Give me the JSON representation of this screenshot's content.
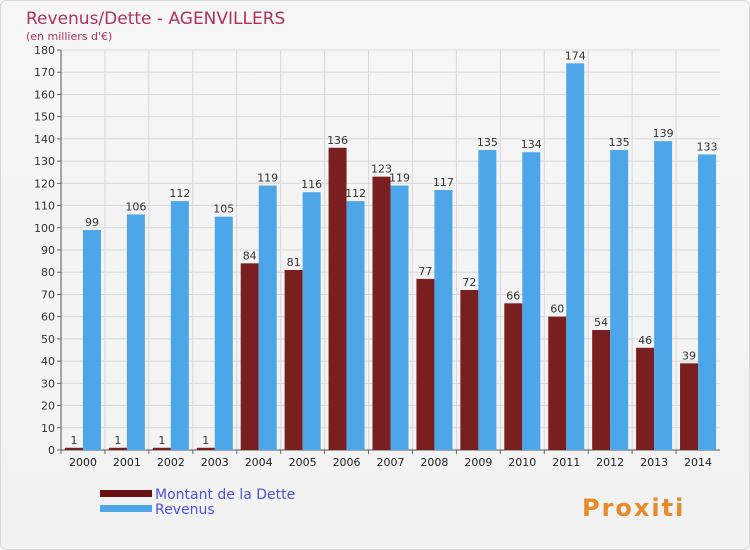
{
  "chart_data": {
    "type": "bar",
    "title": "Revenus/Dette - AGENVILLERS",
    "subtitle": "(en milliers d'€)",
    "categories": [
      "2000",
      "2001",
      "2002",
      "2003",
      "2004",
      "2005",
      "2006",
      "2007",
      "2008",
      "2009",
      "2010",
      "2011",
      "2012",
      "2013",
      "2014"
    ],
    "series": [
      {
        "name": "Montant de la Dette",
        "values": [
          1,
          1,
          1,
          1,
          84,
          81,
          136,
          123,
          77,
          72,
          66,
          60,
          54,
          46,
          39
        ],
        "color": "#7a1f1f"
      },
      {
        "name": "Revenus",
        "values": [
          99,
          106,
          112,
          105,
          119,
          116,
          112,
          119,
          117,
          135,
          134,
          174,
          135,
          139,
          133
        ],
        "color": "#4da6e8"
      }
    ],
    "ylim": [
      0,
      180
    ],
    "yticks": [
      0,
      10,
      20,
      30,
      40,
      50,
      60,
      70,
      80,
      90,
      100,
      110,
      120,
      130,
      140,
      150,
      160,
      170,
      180
    ],
    "xlabel": "",
    "ylabel": "",
    "grid": true,
    "legend_position": "bottom-left"
  },
  "brand": {
    "logo_text": "Proxiti"
  },
  "colors": {
    "title": "#b03060",
    "legend_text": "#5050e0",
    "grid": "#d8d8d8"
  }
}
